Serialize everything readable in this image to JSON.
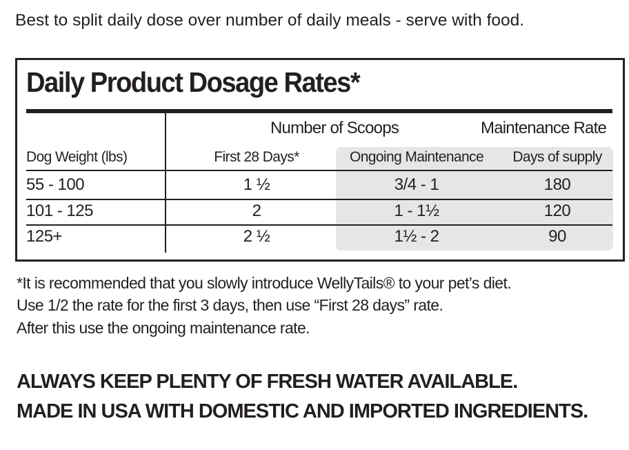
{
  "intro": "Best to split daily dose over number of daily meals - serve with food.",
  "table": {
    "title": "Daily Product Dosage Rates*",
    "group_headers": {
      "scoops": "Number of Scoops",
      "maintenance": "Maintenance Rate"
    },
    "columns": [
      "Dog Weight (lbs)",
      "First 28 Days*",
      "Ongoing Maintenance",
      "Days of supply"
    ],
    "rows": [
      [
        "55 - 100",
        "1 ½",
        "3/4  - 1",
        "180"
      ],
      [
        "101 - 125",
        "2",
        "1 - 1½",
        "120"
      ],
      [
        "125+",
        "2 ½",
        "1½  - 2",
        "90"
      ]
    ],
    "highlight_color": "#e6e6e6"
  },
  "notes": [
    "*It is recommended that you slowly introduce WellyTails® to your pet’s diet.",
    "Use 1/2 the rate for the first 3 days, then use “First 28 days” rate.",
    "After this use the ongoing maintenance rate."
  ],
  "warnings": [
    "ALWAYS KEEP PLENTY OF FRESH WATER AVAILABLE.",
    "MADE IN USA WITH DOMESTIC AND IMPORTED INGREDIENTS."
  ]
}
